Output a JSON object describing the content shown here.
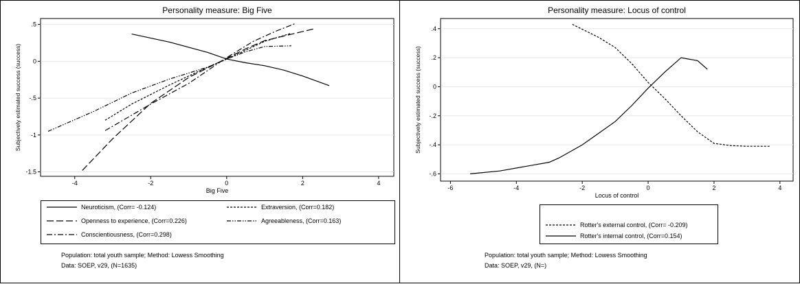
{
  "chart_data": [
    {
      "type": "line",
      "title": "Personality measure: Big Five",
      "xlabel": "Big Five",
      "ylabel": "Subjectively estimated success (success)",
      "xlim": [
        -4.9,
        4.4
      ],
      "ylim": [
        -1.56,
        0.58
      ],
      "xticks": [
        -4,
        -2,
        0,
        2,
        4
      ],
      "yticks": [
        0.5,
        0,
        -0.5,
        -1,
        -1.5
      ],
      "ytick_labels": [
        ".5",
        "0",
        "-.5",
        "-1",
        "-1.5"
      ],
      "grid": true,
      "legend_position": "bottom",
      "series": [
        {
          "name": "Neuroticism, (Corr= -0.124)",
          "dash": "solid",
          "x": [
            -2.5,
            -1.5,
            -0.5,
            0,
            0.5,
            1.0,
            1.5,
            2.0,
            2.7
          ],
          "y": [
            0.37,
            0.26,
            0.12,
            0.03,
            -0.02,
            -0.06,
            -0.12,
            -0.2,
            -0.33
          ]
        },
        {
          "name": "Extraversion, (Corr=0.182)",
          "dash": "short",
          "x": [
            -3.2,
            -2.5,
            -2.0,
            -1.5,
            -1.0,
            -0.5,
            0,
            0.5,
            1.0,
            1.7
          ],
          "y": [
            -0.8,
            -0.58,
            -0.45,
            -0.32,
            -0.2,
            -0.08,
            0.03,
            0.15,
            0.27,
            0.38
          ]
        },
        {
          "name": "Openness to experience, (Corr=0.226)",
          "dash": "long",
          "x": [
            -3.8,
            -3.0,
            -2.0,
            -1.0,
            0,
            0.5,
            1.0,
            2.3
          ],
          "y": [
            -1.48,
            -1.05,
            -0.57,
            -0.22,
            0.04,
            0.17,
            0.28,
            0.44
          ]
        },
        {
          "name": "Agreeableness, (Corr=0.163)",
          "dash": "dashdot2",
          "x": [
            -4.7,
            -3.5,
            -2.5,
            -1.5,
            -0.5,
            0,
            0.5,
            1.0,
            1.7
          ],
          "y": [
            -0.95,
            -0.68,
            -0.43,
            -0.24,
            -0.08,
            0.03,
            0.13,
            0.2,
            0.21
          ]
        },
        {
          "name": "Conscientiousness, (Corr=0.298)",
          "dash": "dashdot",
          "x": [
            -3.2,
            -2.0,
            -1.0,
            0,
            0.7,
            1.3,
            1.8
          ],
          "y": [
            -0.94,
            -0.58,
            -0.3,
            0.05,
            0.27,
            0.41,
            0.51
          ]
        }
      ],
      "notes": [
        "Population: total youth sample; Method: Lowess Smoothing",
        "Data: SOEP, v29, (N=1635)"
      ]
    },
    {
      "type": "line",
      "title": "Personality measure: Locus of control",
      "xlabel": "Locus of control",
      "ylabel": "Subjectively estimated success (success)",
      "xlim": [
        -6.3,
        4.4
      ],
      "ylim": [
        -0.65,
        0.47
      ],
      "xticks": [
        -6,
        -4,
        -2,
        0,
        2,
        4
      ],
      "yticks": [
        0.4,
        0.2,
        0,
        -0.2,
        -0.4,
        -0.6
      ],
      "ytick_labels": [
        ".4",
        ".2",
        "0",
        "-.2",
        "-.4",
        "-.6"
      ],
      "grid": true,
      "legend_position": "bottom",
      "series": [
        {
          "name": "Rotter's external control, (Corr= -0.209)",
          "dash": "short",
          "x": [
            -2.3,
            -1.5,
            -1.0,
            -0.5,
            0,
            0.5,
            1.0,
            1.5,
            2.0,
            2.5,
            3.0,
            3.7
          ],
          "y": [
            0.43,
            0.34,
            0.27,
            0.16,
            0.03,
            -0.08,
            -0.2,
            -0.31,
            -0.39,
            -0.405,
            -0.41,
            -0.41
          ]
        },
        {
          "name": "Rotter's internal control, (Corr=0.154)",
          "dash": "solid",
          "x": [
            -5.4,
            -4.5,
            -3.0,
            -2.7,
            -2.0,
            -1.5,
            -1.0,
            -0.5,
            0,
            0.5,
            1.0,
            1.5,
            1.8
          ],
          "y": [
            -0.6,
            -0.58,
            -0.52,
            -0.49,
            -0.4,
            -0.32,
            -0.24,
            -0.13,
            -0.01,
            0.1,
            0.2,
            0.18,
            0.12
          ]
        }
      ],
      "notes": [
        "Population: total youth sample; Method: Lowess Smoothing",
        "Data: SOEP, v29, (N=)"
      ]
    }
  ]
}
